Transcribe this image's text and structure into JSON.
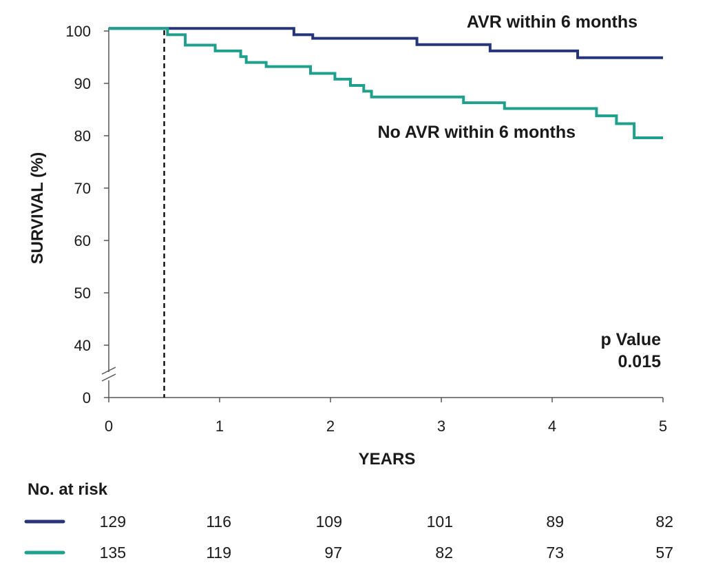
{
  "chart_data": {
    "type": "line",
    "title": "",
    "xlabel": "YEARS",
    "ylabel": "SURVIVAL (%)",
    "xlim": [
      0,
      5
    ],
    "x_ticks": [
      "0",
      "1",
      "2",
      "3",
      "4",
      "5"
    ],
    "y_ticks": [
      "0",
      "40",
      "50",
      "60",
      "70",
      "80",
      "90",
      "100"
    ],
    "y_axis_break": [
      0,
      40
    ],
    "reference_line_x": 0.5,
    "annotation": {
      "line1": "p Value",
      "line2": "0.015"
    },
    "series": [
      {
        "name": "AVR within 6 months",
        "color": "#26357a",
        "steps": [
          [
            0,
            100.5
          ],
          [
            1.67,
            99.3
          ],
          [
            1.84,
            98.6
          ],
          [
            2.78,
            97.4
          ],
          [
            3.44,
            96.2
          ],
          [
            4.23,
            94.9
          ],
          [
            5,
            94.9
          ]
        ]
      },
      {
        "name": "No AVR within 6 months",
        "color": "#1fa08d",
        "steps": [
          [
            0,
            100.5
          ],
          [
            0.53,
            99.3
          ],
          [
            0.69,
            97.3
          ],
          [
            0.96,
            96.2
          ],
          [
            1.19,
            95.1
          ],
          [
            1.24,
            94.0
          ],
          [
            1.42,
            93.2
          ],
          [
            1.82,
            91.9
          ],
          [
            2.04,
            90.8
          ],
          [
            2.18,
            89.6
          ],
          [
            2.3,
            88.5
          ],
          [
            2.37,
            87.4
          ],
          [
            3.2,
            86.3
          ],
          [
            3.57,
            85.2
          ],
          [
            4.4,
            83.8
          ],
          [
            4.58,
            82.3
          ],
          [
            4.74,
            79.6
          ],
          [
            5,
            79.6
          ]
        ]
      }
    ],
    "risk_table": {
      "title": "No. at risk",
      "rows": [
        {
          "color": "#26357a",
          "values": [
            "129",
            "116",
            "109",
            "101",
            "89",
            "82"
          ]
        },
        {
          "color": "#1fa08d",
          "values": [
            "135",
            "119",
            "97",
            "82",
            "73",
            "57"
          ]
        }
      ]
    }
  }
}
